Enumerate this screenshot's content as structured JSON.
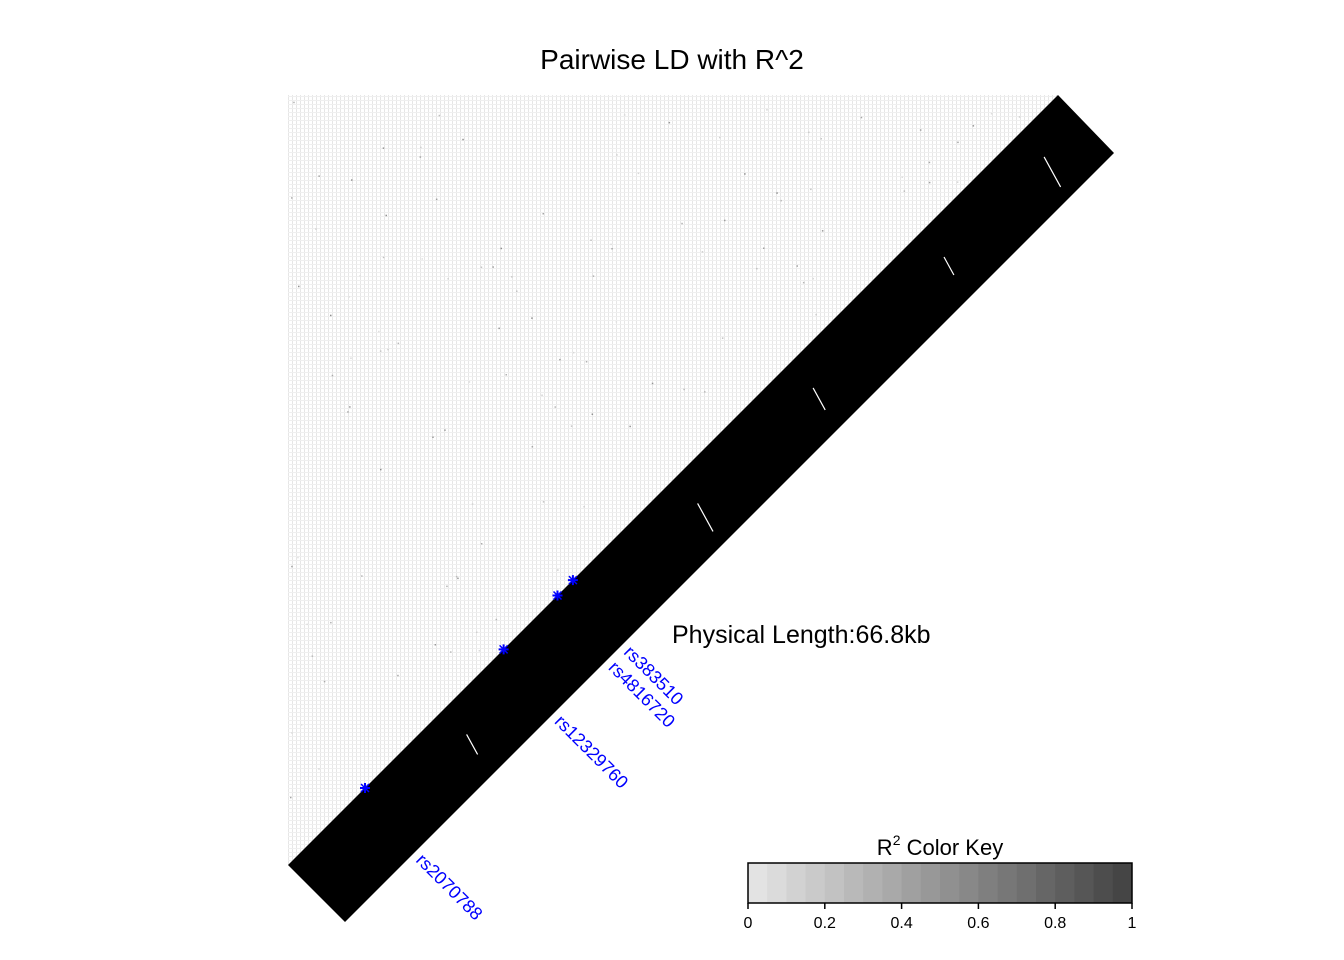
{
  "chart_data": {
    "type": "heatmap",
    "title": "Pairwise LD with R^2",
    "physical_length_label": "Physical Length:66.8kb",
    "highlight_color": "#0000ff",
    "ld_color": "#000000",
    "highlighted_snps": [
      {
        "name": "rs2070788",
        "position_fraction": 0.1
      },
      {
        "name": "rs12329760",
        "position_fraction": 0.28
      },
      {
        "name": "rs4816720",
        "position_fraction": 0.35
      },
      {
        "name": "rs383510",
        "position_fraction": 0.37
      }
    ],
    "color_key": {
      "title_base": "R",
      "title_superscript": "2",
      "title_rest": " Color Key",
      "range": [
        0,
        1
      ],
      "ticks": [
        "0",
        "0.2",
        "0.4",
        "0.6",
        "0.8",
        "1"
      ],
      "tick_values": [
        0,
        0.2,
        0.4,
        0.6,
        0.8,
        1
      ],
      "color_low": "#e3e3e3",
      "color_high": "#454545"
    }
  }
}
